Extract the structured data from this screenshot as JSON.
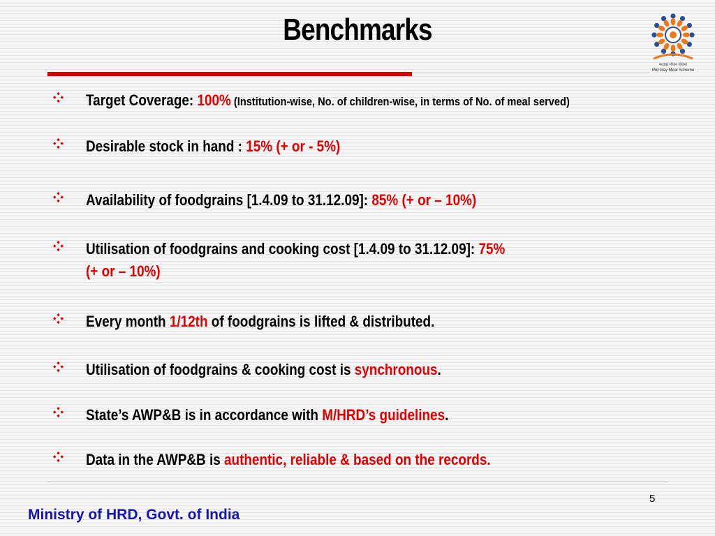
{
  "slide": {
    "title": "Benchmarks",
    "page_number": "5",
    "footer": "Ministry of HRD, Govt. of India"
  },
  "logo": {
    "icon": "mid-day-meal-scheme-logo",
    "hindi_text": "मध्याह्न भोजन योजना",
    "english_text": "Mid Day Meal Scheme"
  },
  "colors": {
    "accent_red": "#e00000",
    "title_rule": "#d90000",
    "footer_blue": "#1515b0"
  },
  "bullet_icon": "diamond-bullet-icon",
  "bullets": [
    {
      "a": "Target Coverage: ",
      "b": "100%",
      "c": " (Institution-wise, No. of children-wise, in terms of No. of meal served)"
    },
    {
      "a": "Desirable stock in hand : ",
      "b": "15% (+ or - 5%)"
    },
    {
      "a": "Availability of foodgrains  [1.4.09 to 31.12.09]: ",
      "b": "85%  (+ or – 10%)"
    },
    {
      "a": "Utilisation of foodgrains and cooking cost [1.4.09 to 31.12.09]: ",
      "b": "75%",
      "line2": "(+ or – 10%)"
    },
    {
      "a": "Every month ",
      "b": "1/12th",
      "c": " of foodgrains is lifted & distributed."
    },
    {
      "a": "Utilisation of foodgrains & cooking cost is ",
      "b": "synchronous",
      "c": "."
    },
    {
      "a": "State’s AWP&B is in accordance with ",
      "b": "M/HRD’s guidelines",
      "c": "."
    },
    {
      "a": "Data in the AWP&B is ",
      "b": "authentic, reliable & based on the records."
    }
  ]
}
